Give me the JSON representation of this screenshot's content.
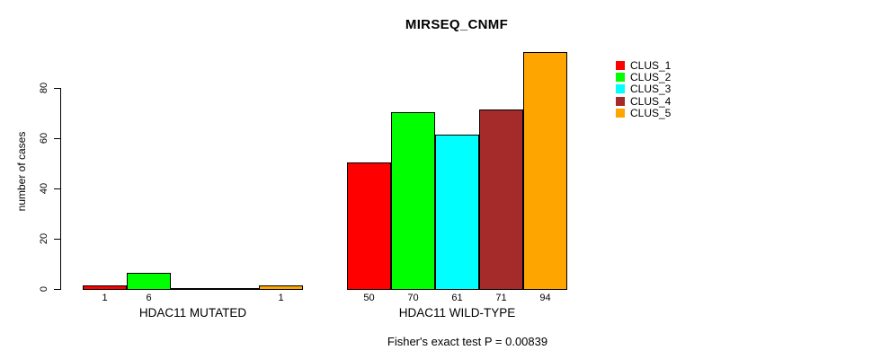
{
  "chart_data": {
    "type": "bar",
    "title": "MIRSEQ_CNMF",
    "subtitle": "Fisher's exact test P = 0.00839",
    "xlabel": "",
    "ylabel": "number of cases",
    "yticks": [
      0,
      20,
      40,
      60,
      80
    ],
    "ylim": [
      0,
      94
    ],
    "grid": false,
    "legend_position": "right",
    "series": [
      {
        "name": "CLUS_1",
        "color": "#ff0000"
      },
      {
        "name": "CLUS_2",
        "color": "#00ff00"
      },
      {
        "name": "CLUS_3",
        "color": "#00ffff"
      },
      {
        "name": "CLUS_4",
        "color": "#a52a2a"
      },
      {
        "name": "CLUS_5",
        "color": "#ffa500"
      }
    ],
    "groups": [
      {
        "label": "HDAC11 MUTATED",
        "values": [
          1,
          6,
          0,
          0,
          1
        ],
        "bar_labels": [
          "1",
          "6",
          "",
          "",
          "1"
        ]
      },
      {
        "label": "HDAC11 WILD-TYPE",
        "values": [
          50,
          70,
          61,
          71,
          94
        ],
        "bar_labels": [
          "50",
          "70",
          "61",
          "71",
          "94"
        ]
      }
    ]
  }
}
